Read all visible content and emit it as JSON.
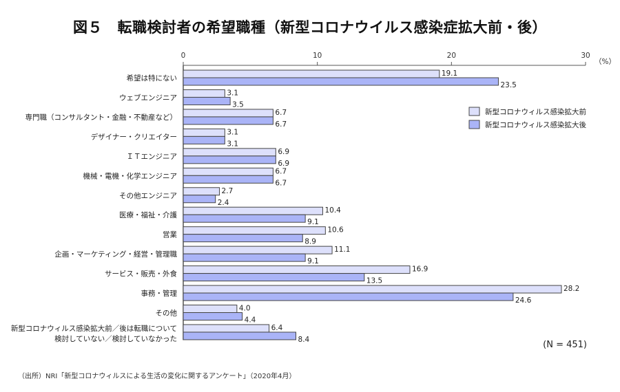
{
  "chart_data": {
    "type": "bar",
    "orientation": "horizontal",
    "title": "図５　転職検討者の希望職種（新型コロナウイルス感染症拡大前・後）",
    "xlabel": "",
    "ylabel": "",
    "unit_label": "（%）",
    "xlim": [
      0,
      30
    ],
    "xticks": [
      0,
      10,
      20,
      30
    ],
    "grid": false,
    "legend_position": "right",
    "categories": [
      "希望は特にない",
      "ウェブエンジニア",
      "専門職（コンサルタント・金融・不動産など）",
      "デザイナー・クリエイター",
      "ＩＴエンジニア",
      "機械・電機・化学エンジニア",
      "その他エンジニア",
      "医療・福祉・介護",
      "営業",
      "企画・マーケティング・経営・管理職",
      "サービス・販売・外食",
      "事務・管理",
      "その他",
      [
        "新型コロナウィルス感染拡大前／後は転職について",
        "検討していない／検討していなかった"
      ]
    ],
    "series": [
      {
        "name": "新型コロナウィルス感染拡大前",
        "color": "#dde0fb",
        "values": [
          19.1,
          3.1,
          6.7,
          3.1,
          6.9,
          6.7,
          2.7,
          10.4,
          10.6,
          11.1,
          16.9,
          28.2,
          4.0,
          6.4
        ],
        "labels": [
          "19.1",
          "3.1",
          "6.7",
          "3.1",
          "6.9",
          "6.7",
          "2.7",
          "10.4",
          "10.6",
          "11.1",
          "16.9",
          "28.2",
          "4.0",
          "6.4"
        ]
      },
      {
        "name": "新型コロナウィルス感染拡大後",
        "color": "#aab4f7",
        "values": [
          23.5,
          3.5,
          6.7,
          3.1,
          6.9,
          6.7,
          2.4,
          9.1,
          8.9,
          9.1,
          13.5,
          24.6,
          4.4,
          8.4
        ],
        "labels": [
          "23.5",
          "3.5",
          "6.7",
          "3.1",
          "6.9",
          "6.7",
          "2.4",
          "9.1",
          "8.9",
          "9.1",
          "13.5",
          "24.6",
          "4.4",
          "8.4"
        ]
      }
    ],
    "annotations": [
      "(N = 451)"
    ],
    "source": "（出所）NRI「新型コロナウィルスによる生活の変化に関するアンケート」（2020年4月）"
  },
  "colors": {
    "bar_border": "#444444",
    "axis": "#555555"
  }
}
